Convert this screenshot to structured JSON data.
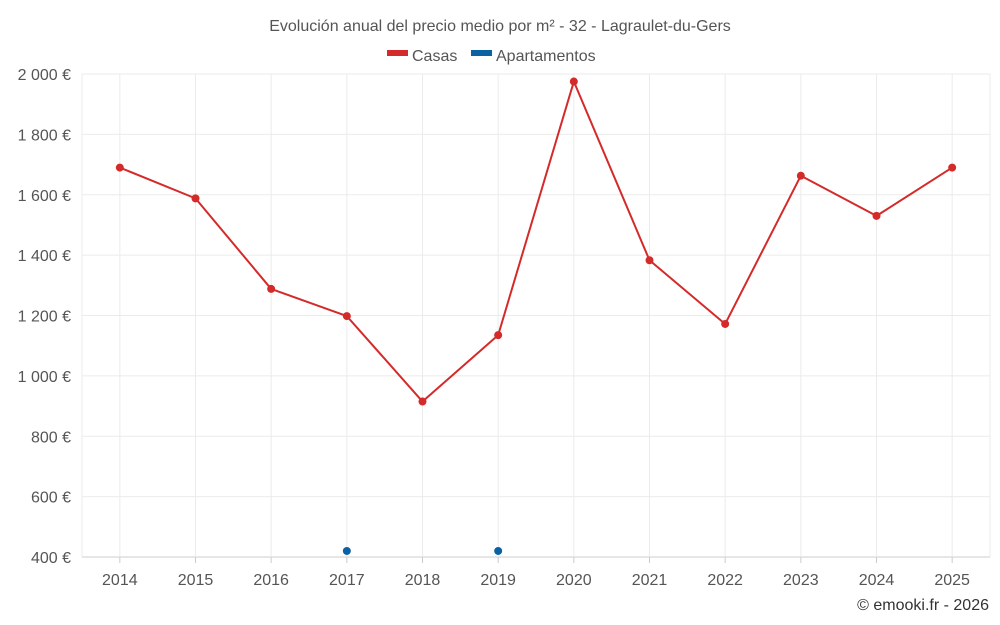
{
  "chart_data": {
    "type": "line",
    "title": "Evolución anual del precio medio por m² - 32 - Lagraulet-du-Gers",
    "categories": [
      "2014",
      "2015",
      "2016",
      "2017",
      "2018",
      "2019",
      "2020",
      "2021",
      "2022",
      "2023",
      "2024",
      "2025"
    ],
    "series": [
      {
        "name": "Casas",
        "color": "#d42a2a",
        "values": [
          1690,
          1588,
          1288,
          1198,
          915,
          1135,
          1975,
          1383,
          1172,
          1663,
          1530,
          1690
        ]
      },
      {
        "name": "Apartamentos",
        "color": "#0b62a3",
        "values": [
          null,
          null,
          null,
          420,
          null,
          420,
          null,
          null,
          null,
          null,
          null,
          null
        ]
      }
    ],
    "y_ticks": [
      "400 €",
      "600 €",
      "800 €",
      "1 000 €",
      "1 200 €",
      "1 400 €",
      "1 600 €",
      "1 800 €",
      "2 000 €"
    ],
    "ylim": [
      400,
      2000
    ],
    "xlabel": "",
    "ylabel": "",
    "legend_position": "top-center",
    "grid": true
  },
  "credit": "© emooki.fr - 2026"
}
